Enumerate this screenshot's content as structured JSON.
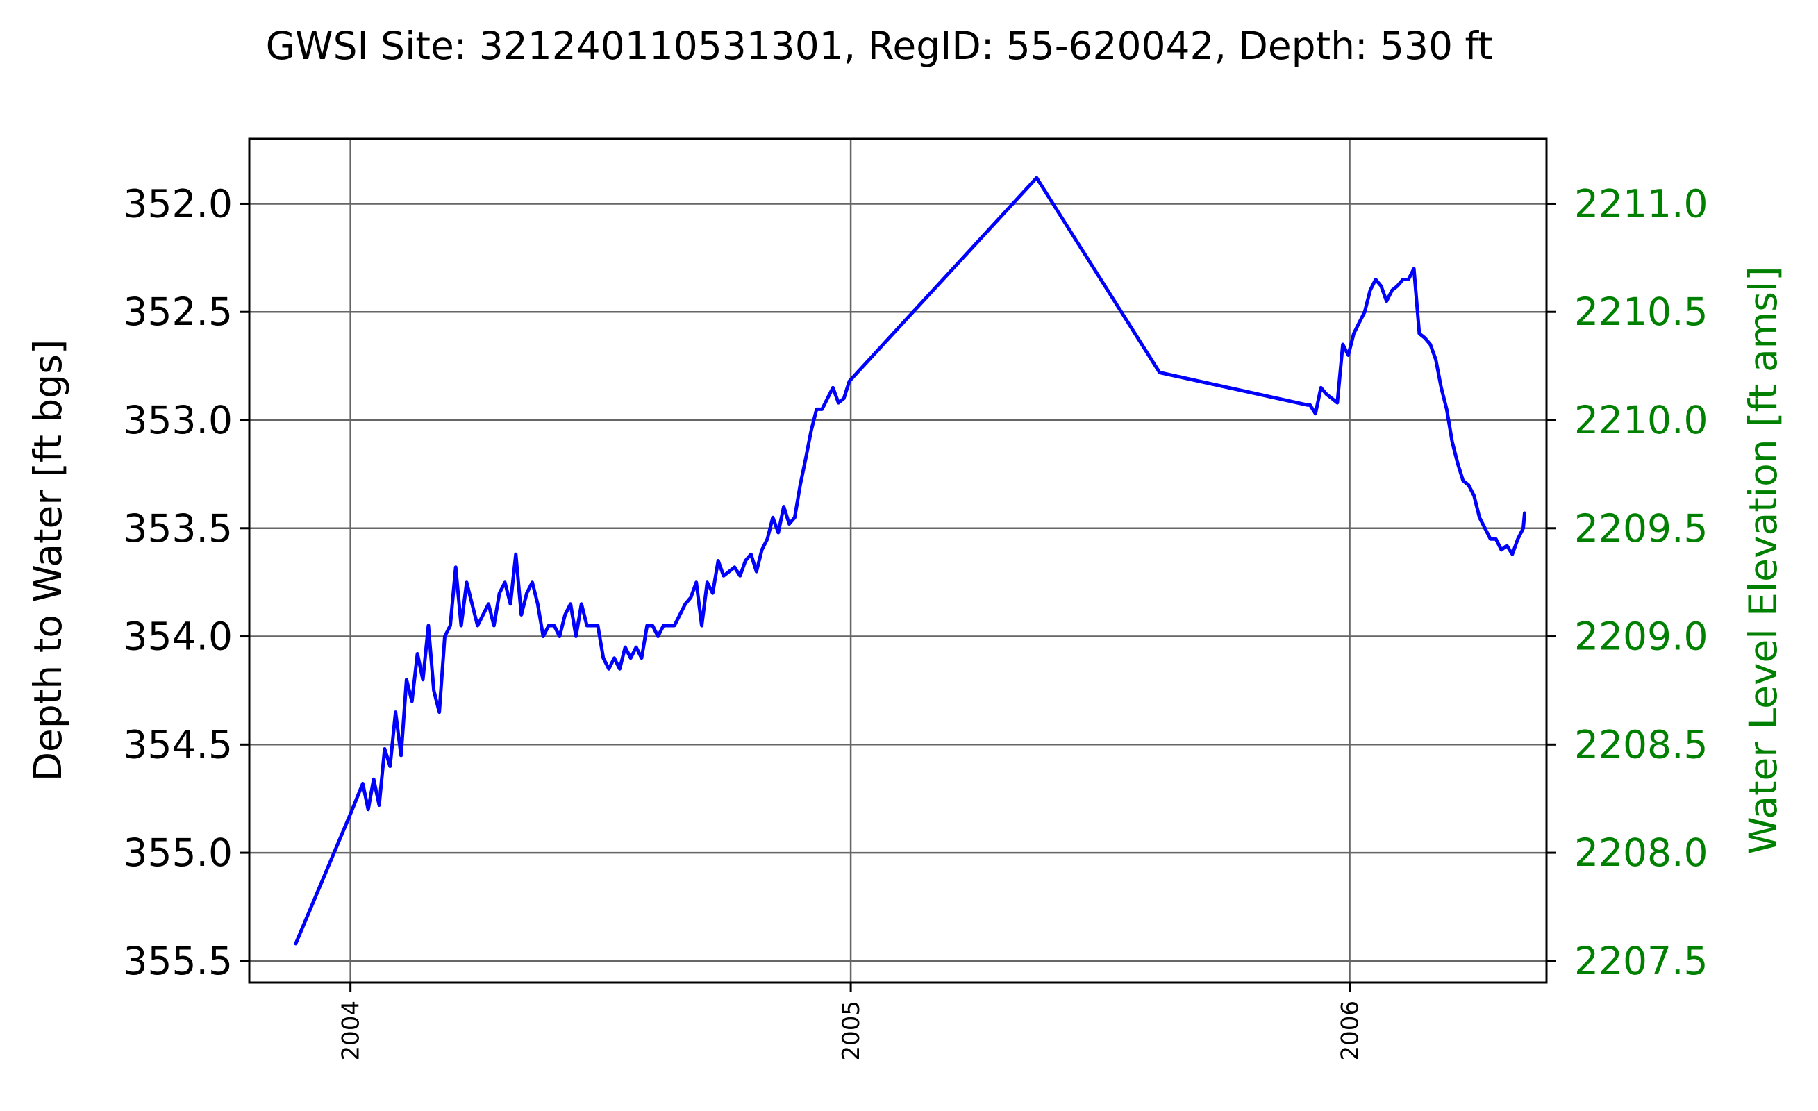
{
  "chart_data": {
    "type": "line",
    "title": "GWSI Site: 321240110531301, RegID: 55-620042, Depth: 530 ft",
    "xlabel": "",
    "ylabel": "Depth to Water [ft bgs]",
    "ylabel_right": "Water Level Elevation [ft amsl]",
    "y_inverted": true,
    "ylim": [
      355.6,
      351.7
    ],
    "ylim_right": [
      2207.4,
      2211.3
    ],
    "xlim": [
      "2003-10-19",
      "2006-05-25"
    ],
    "grid": true,
    "colors": {
      "series": "#0000ff",
      "right_axis": "#008000",
      "grid": "#666666"
    },
    "x_ticks": [
      "2004",
      "2005",
      "2006"
    ],
    "y_ticks": [
      "352.0",
      "352.5",
      "353.0",
      "353.5",
      "354.0",
      "354.5",
      "355.0",
      "355.5"
    ],
    "y_ticks_right": [
      "2211.0",
      "2210.5",
      "2210.0",
      "2209.5",
      "2209.0",
      "2208.5",
      "2208.0",
      "2207.5"
    ],
    "series": [
      {
        "x": [
          "2003-11-22",
          "2004-01-01",
          "2004-01-10",
          "2004-01-14",
          "2004-01-18",
          "2004-01-22",
          "2004-01-26",
          "2004-01-30",
          "2004-02-03",
          "2004-02-07",
          "2004-02-11",
          "2004-02-15",
          "2004-02-19",
          "2004-02-23",
          "2004-02-27",
          "2004-03-02",
          "2004-03-06",
          "2004-03-10",
          "2004-03-14",
          "2004-03-18",
          "2004-03-22",
          "2004-03-26",
          "2004-03-30",
          "2004-04-03",
          "2004-04-07",
          "2004-04-11",
          "2004-04-15",
          "2004-04-19",
          "2004-04-23",
          "2004-04-27",
          "2004-05-01",
          "2004-05-05",
          "2004-05-09",
          "2004-05-13",
          "2004-05-17",
          "2004-05-21",
          "2004-05-25",
          "2004-05-29",
          "2004-06-02",
          "2004-06-06",
          "2004-06-10",
          "2004-06-14",
          "2004-06-18",
          "2004-06-22",
          "2004-06-26",
          "2004-06-30",
          "2004-07-04",
          "2004-07-08",
          "2004-07-12",
          "2004-07-16",
          "2004-07-20",
          "2004-07-24",
          "2004-07-28",
          "2004-08-01",
          "2004-08-05",
          "2004-08-09",
          "2004-08-13",
          "2004-08-17",
          "2004-08-21",
          "2004-08-25",
          "2004-08-29",
          "2004-09-02",
          "2004-09-06",
          "2004-09-10",
          "2004-09-14",
          "2004-09-18",
          "2004-09-22",
          "2004-09-26",
          "2004-09-30",
          "2004-10-04",
          "2004-10-08",
          "2004-10-12",
          "2004-10-16",
          "2004-10-20",
          "2004-10-24",
          "2004-10-28",
          "2004-11-01",
          "2004-11-05",
          "2004-11-09",
          "2004-11-13",
          "2004-11-17",
          "2004-11-21",
          "2004-11-25",
          "2004-11-29",
          "2004-12-03",
          "2004-12-07",
          "2004-12-11",
          "2004-12-15",
          "2004-12-19",
          "2004-12-23",
          "2004-12-27",
          "2004-12-31",
          "2005-05-17",
          "2005-08-15",
          "2005-12-01",
          "2005-12-03",
          "2005-12-07",
          "2005-12-11",
          "2005-12-15",
          "2005-12-19",
          "2005-12-23",
          "2005-12-27",
          "2005-12-31",
          "2006-01-04",
          "2006-01-08",
          "2006-01-12",
          "2006-01-16",
          "2006-01-20",
          "2006-01-24",
          "2006-01-28",
          "2006-02-01",
          "2006-02-05",
          "2006-02-09",
          "2006-02-13",
          "2006-02-17",
          "2006-02-21",
          "2006-02-25",
          "2006-03-01",
          "2006-03-05",
          "2006-03-09",
          "2006-03-13",
          "2006-03-17",
          "2006-03-21",
          "2006-03-25",
          "2006-03-29",
          "2006-04-02",
          "2006-04-06",
          "2006-04-10",
          "2006-04-14",
          "2006-04-18",
          "2006-04-22",
          "2006-04-26",
          "2006-04-30",
          "2006-05-04",
          "2006-05-08",
          "2006-05-09"
        ],
        "values": [
          355.42,
          354.82,
          354.68,
          354.8,
          354.66,
          354.78,
          354.52,
          354.6,
          354.35,
          354.55,
          354.2,
          354.3,
          354.08,
          354.2,
          353.95,
          354.25,
          354.35,
          354.0,
          353.95,
          353.68,
          353.95,
          353.75,
          353.85,
          353.95,
          353.9,
          353.85,
          353.95,
          353.8,
          353.75,
          353.85,
          353.62,
          353.9,
          353.8,
          353.75,
          353.85,
          354.0,
          353.95,
          353.95,
          354.0,
          353.9,
          353.85,
          354.0,
          353.85,
          353.95,
          353.95,
          353.95,
          354.1,
          354.15,
          354.1,
          354.15,
          354.05,
          354.1,
          354.05,
          354.1,
          353.95,
          353.95,
          354.0,
          353.95,
          353.95,
          353.95,
          353.9,
          353.85,
          353.82,
          353.75,
          353.95,
          353.75,
          353.8,
          353.65,
          353.72,
          353.7,
          353.68,
          353.72,
          353.65,
          353.62,
          353.7,
          353.6,
          353.55,
          353.45,
          353.52,
          353.4,
          353.48,
          353.45,
          353.3,
          353.18,
          353.05,
          352.95,
          352.95,
          352.9,
          352.85,
          352.92,
          352.9,
          352.82,
          351.88,
          352.78,
          352.93,
          352.93,
          352.97,
          352.85,
          352.88,
          352.9,
          352.92,
          352.65,
          352.7,
          352.6,
          352.55,
          352.5,
          352.4,
          352.35,
          352.38,
          352.45,
          352.4,
          352.38,
          352.35,
          352.35,
          352.3,
          352.6,
          352.62,
          352.65,
          352.72,
          352.85,
          352.95,
          353.1,
          353.2,
          353.28,
          353.3,
          353.35,
          353.45,
          353.5,
          353.55,
          353.55,
          353.6,
          353.58,
          353.62,
          353.55,
          353.5,
          353.43
        ]
      }
    ]
  }
}
